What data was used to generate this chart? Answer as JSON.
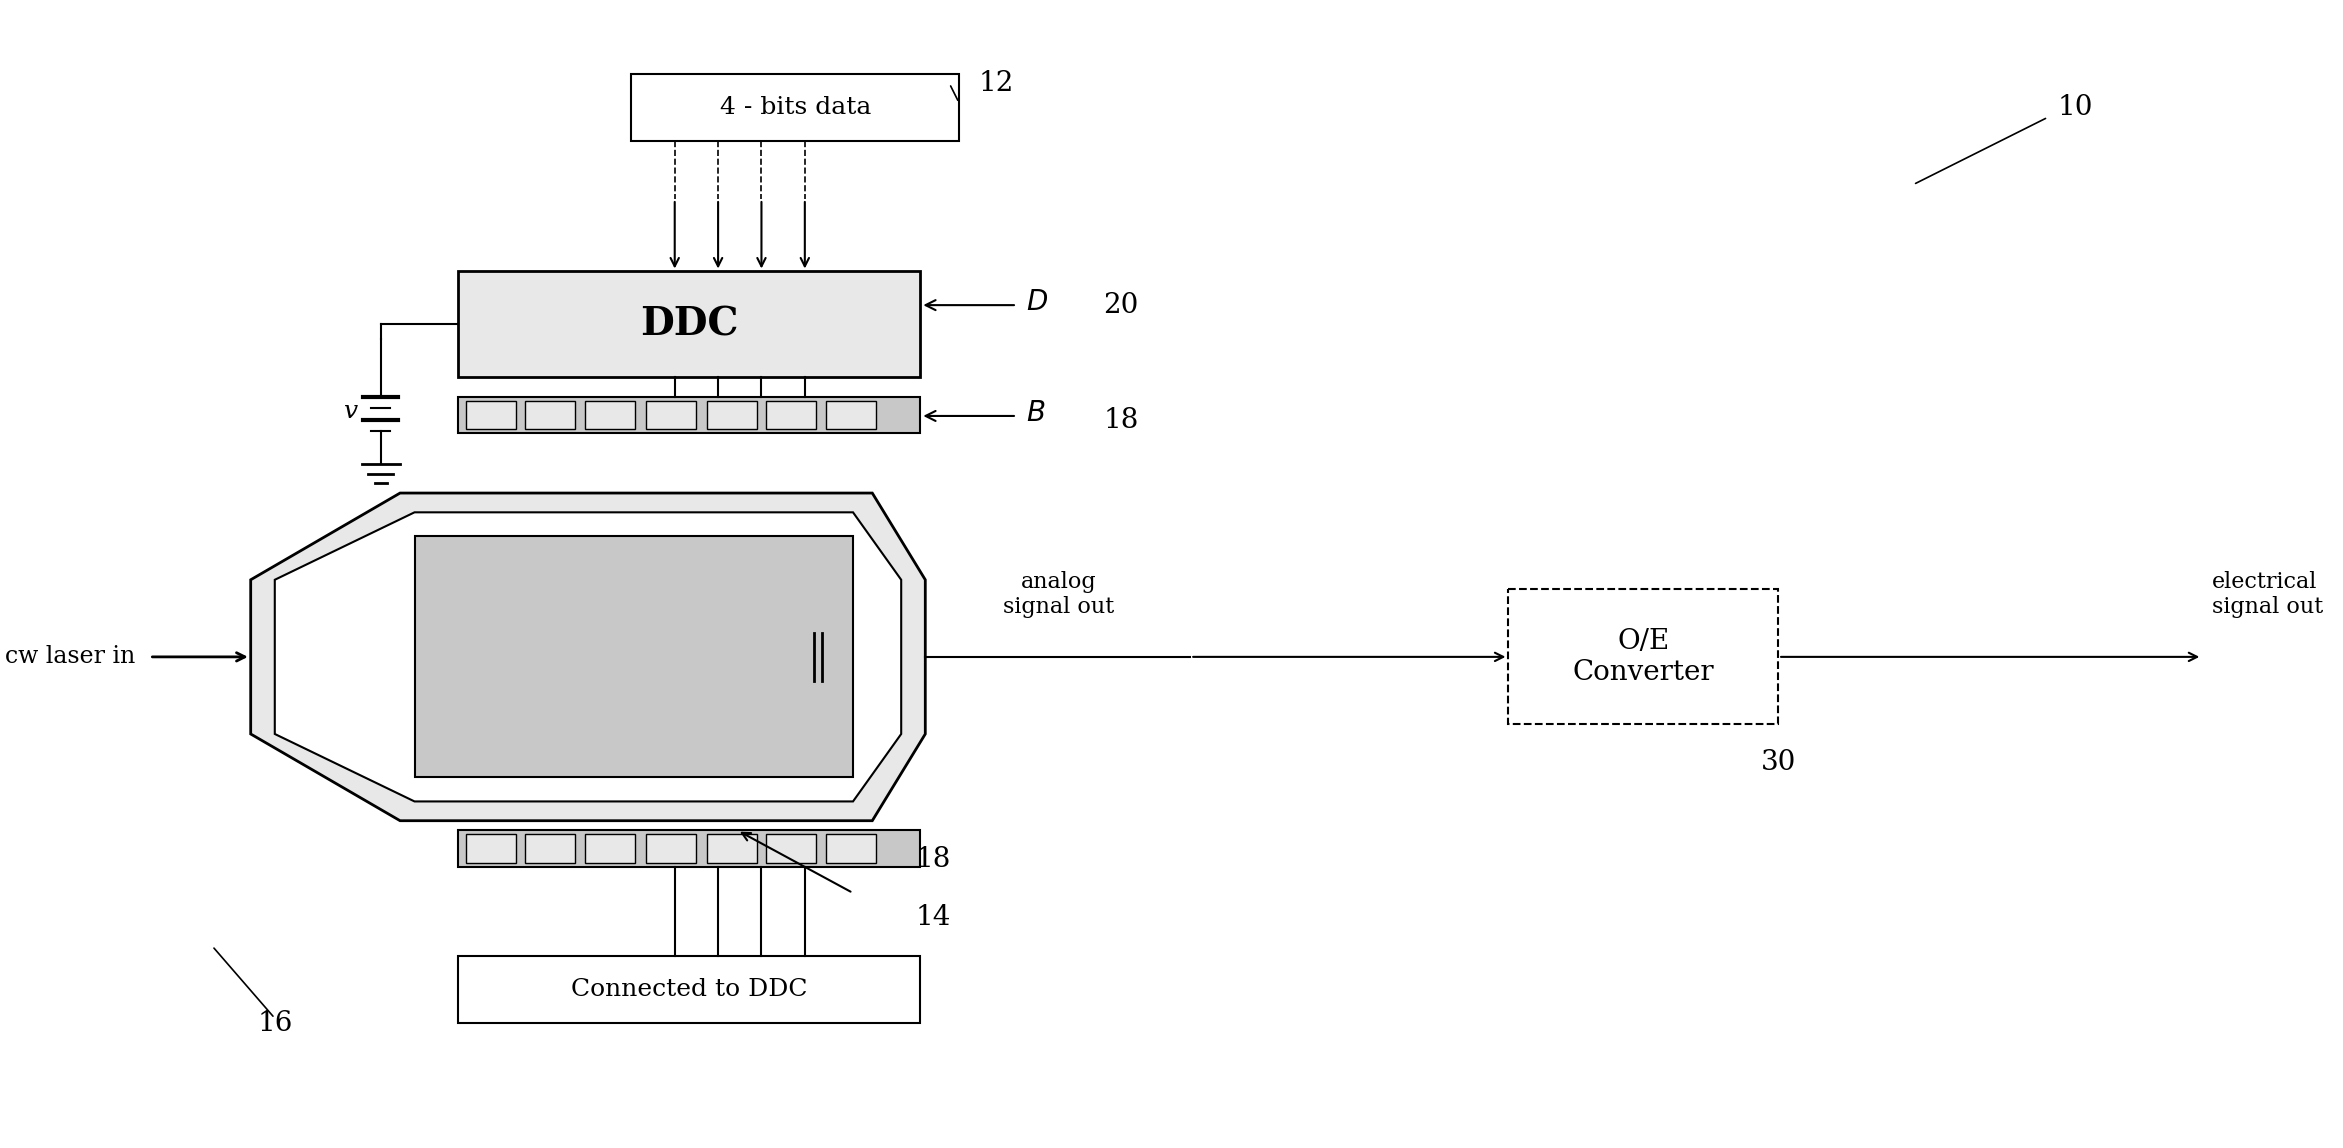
{
  "bg_color": "#ffffff",
  "line_color": "#000000",
  "gray_fill": "#cccccc",
  "dark_gray_fill": "#aaaaaa",
  "light_gray_fill": "#e0e0e0",
  "box_edge_color": "#000000",
  "title": "",
  "labels": {
    "bits_data": "4 - bits data",
    "ddc": "DDC",
    "connected_ddc": "Connected to DDC",
    "oe_converter": "O/E\nConverter",
    "cw_laser": "cw laser in",
    "analog_out": "analog\nsignal out",
    "electrical_out": "electrical\nsignal out",
    "D": "D",
    "B": "B",
    "V": "v",
    "ref_10": "10",
    "ref_12": "12",
    "ref_14": "14",
    "ref_16": "16",
    "ref_18_top": "18",
    "ref_18_bot": "18",
    "ref_20": "20",
    "ref_30": "30"
  }
}
